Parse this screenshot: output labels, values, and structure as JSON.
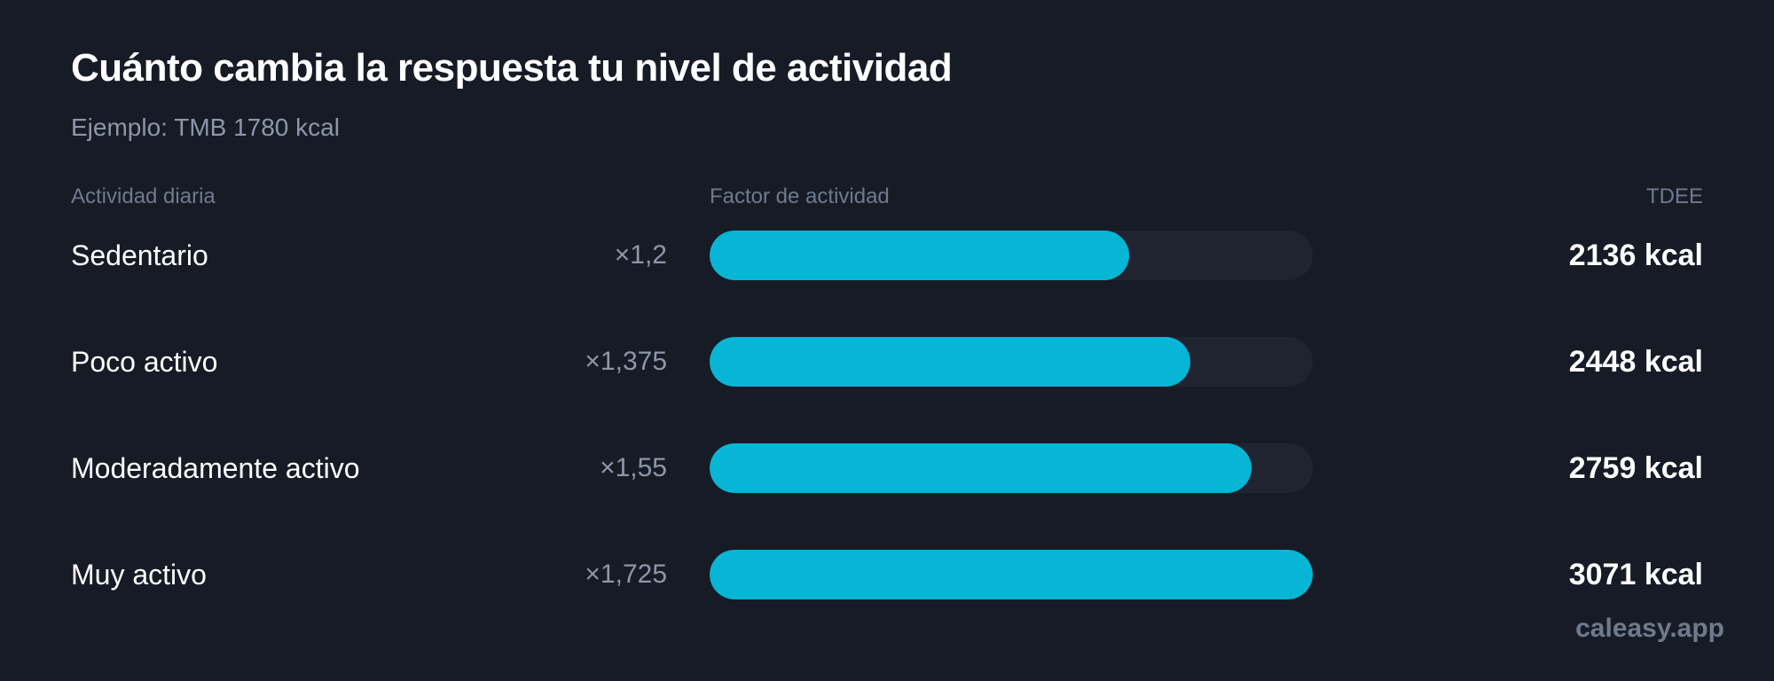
{
  "title": "Cuánto cambia la respuesta tu nivel de actividad",
  "subtitle": "Ejemplo: TMB 1780 kcal",
  "headers": {
    "activity": "Actividad diaria",
    "factor": "Factor de actividad",
    "tdee": "TDEE"
  },
  "watermark": "caleasy.app",
  "colors": {
    "background": "#171b26",
    "bar": "#06b6d4",
    "track": "#1f2430",
    "muted": "#8d97a8"
  },
  "chart_data": {
    "type": "bar",
    "orientation": "horizontal",
    "categories": [
      "Sedentario",
      "Poco activo",
      "Moderadamente activo",
      "Muy activo"
    ],
    "factor_labels": [
      "×1,2",
      "×1,375",
      "×1,55",
      "×1,725"
    ],
    "factors": [
      1.2,
      1.375,
      1.55,
      1.725
    ],
    "values": [
      2136,
      2448,
      2759,
      3071
    ],
    "value_labels": [
      "2136 kcal",
      "2448 kcal",
      "2759 kcal",
      "3071 kcal"
    ],
    "xlim": [
      0,
      1.725
    ],
    "grid": false
  }
}
